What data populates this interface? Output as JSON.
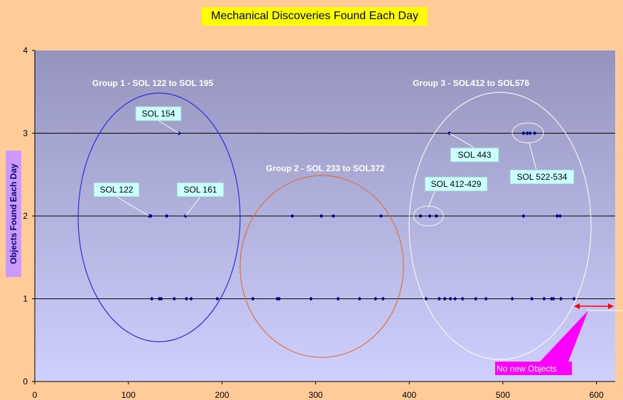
{
  "chart_data": {
    "type": "scatter",
    "title": "Mechanical Discoveries Found Each Day",
    "xlabel": "",
    "ylabel": "Objects Found Each Day",
    "xlim": [
      0,
      620
    ],
    "ylim": [
      0,
      4
    ],
    "x_ticks": [
      0,
      100,
      200,
      300,
      400,
      500,
      600
    ],
    "y_ticks": [
      0,
      1,
      2,
      3,
      4
    ],
    "grid": true,
    "colors": {
      "background_top": "#9494BE",
      "background_bottom": "#D0D0FF",
      "page": "#FFCC99",
      "marker": "#000080",
      "group1_ellipse": "#2E2ED6",
      "group2_ellipse": "#E0703A",
      "group3_ellipse": "#F4F4F4",
      "arrow": "#FF0000",
      "note": "#FF00FF",
      "callout": "#CCFFFF"
    },
    "points": [
      {
        "x": 122,
        "y": 2
      },
      {
        "x": 124,
        "y": 2
      },
      {
        "x": 141,
        "y": 2
      },
      {
        "x": 154,
        "y": 3
      },
      {
        "x": 161,
        "y": 2
      },
      {
        "x": 125,
        "y": 1
      },
      {
        "x": 133,
        "y": 1
      },
      {
        "x": 135,
        "y": 1
      },
      {
        "x": 149,
        "y": 1
      },
      {
        "x": 162,
        "y": 1
      },
      {
        "x": 167,
        "y": 1
      },
      {
        "x": 195,
        "y": 1
      },
      {
        "x": 233,
        "y": 1
      },
      {
        "x": 259,
        "y": 1
      },
      {
        "x": 261,
        "y": 1
      },
      {
        "x": 275,
        "y": 2
      },
      {
        "x": 295,
        "y": 1
      },
      {
        "x": 306,
        "y": 2
      },
      {
        "x": 319,
        "y": 2
      },
      {
        "x": 324,
        "y": 1
      },
      {
        "x": 347,
        "y": 1
      },
      {
        "x": 364,
        "y": 1
      },
      {
        "x": 370,
        "y": 2
      },
      {
        "x": 372,
        "y": 1
      },
      {
        "x": 412,
        "y": 2
      },
      {
        "x": 422,
        "y": 2
      },
      {
        "x": 429,
        "y": 2
      },
      {
        "x": 443,
        "y": 3
      },
      {
        "x": 418,
        "y": 1
      },
      {
        "x": 432,
        "y": 1
      },
      {
        "x": 438,
        "y": 1
      },
      {
        "x": 444,
        "y": 1
      },
      {
        "x": 449,
        "y": 1
      },
      {
        "x": 457,
        "y": 1
      },
      {
        "x": 471,
        "y": 1
      },
      {
        "x": 482,
        "y": 1
      },
      {
        "x": 510,
        "y": 1
      },
      {
        "x": 522,
        "y": 3
      },
      {
        "x": 526,
        "y": 3
      },
      {
        "x": 529,
        "y": 3
      },
      {
        "x": 534,
        "y": 3
      },
      {
        "x": 522,
        "y": 2
      },
      {
        "x": 531,
        "y": 1
      },
      {
        "x": 544,
        "y": 1
      },
      {
        "x": 552,
        "y": 1
      },
      {
        "x": 554,
        "y": 1
      },
      {
        "x": 558,
        "y": 2
      },
      {
        "x": 561,
        "y": 2
      },
      {
        "x": 562,
        "y": 1
      },
      {
        "x": 576,
        "y": 1
      }
    ],
    "groups": [
      {
        "label": "Group 1 - SOL 122 to SOL 195"
      },
      {
        "label": "Group 2 - SOL 233 to SOL372"
      },
      {
        "label": "Group 3 - SOL412 to SOL576"
      }
    ],
    "callouts": [
      "SOL 154",
      "SOL 122",
      "SOL 161",
      "SOL 443",
      "SOL 412-429",
      "SOL 522-534"
    ],
    "note": "No new Objects"
  }
}
